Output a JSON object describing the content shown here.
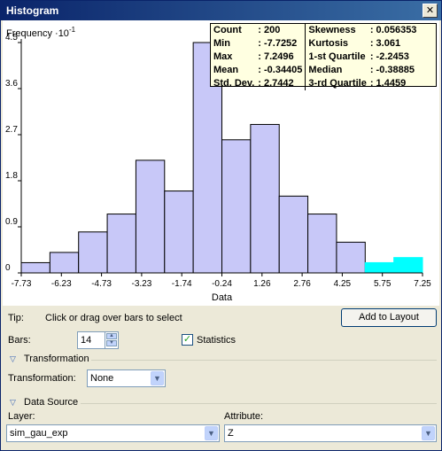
{
  "window": {
    "title": "Histogram"
  },
  "colors": {
    "bar_fill": "#c8c8f8",
    "bar_selected": "#00ffff",
    "bar_stroke": "#000000"
  },
  "chart_data": {
    "type": "bar",
    "title": "",
    "ylabel": "Frequency ·10",
    "ylabel_exponent": "-1",
    "xlabel": "Data",
    "yticks": [
      "0",
      "0.9",
      "1.8",
      "2.7",
      "3.6",
      "4.5"
    ],
    "xticks": [
      "-7.73",
      "-6.23",
      "-4.73",
      "-3.23",
      "-1.74",
      "-0.24",
      "1.26",
      "2.76",
      "4.25",
      "5.75",
      "7.25"
    ],
    "ylim": [
      0,
      4.5
    ],
    "xlim": [
      -7.7252,
      7.2496
    ],
    "bins": 14,
    "values": [
      0.2,
      0.4,
      0.8,
      1.15,
      2.2,
      1.6,
      4.5,
      2.6,
      2.9,
      1.5,
      1.15,
      0.6,
      0.2,
      0.3
    ],
    "selected": [
      false,
      false,
      false,
      false,
      false,
      false,
      false,
      false,
      false,
      false,
      false,
      false,
      true,
      true
    ]
  },
  "statistics": {
    "rows": [
      {
        "label1": "Count",
        "value1": ": 200",
        "label2": "Skewness",
        "value2": ": 0.056353"
      },
      {
        "label1": "Min",
        "value1": ": -7.7252",
        "label2": "Kurtosis",
        "value2": ": 3.061"
      },
      {
        "label1": "Max",
        "value1": ": 7.2496",
        "label2": "1-st Quartile",
        "value2": ": -2.2453"
      },
      {
        "label1": "Mean",
        "value1": ": -0.34405",
        "label2": "Median",
        "value2": ": -0.38885"
      },
      {
        "label1": "Std. Dev.",
        "value1": ": 2.7442",
        "label2": "3-rd Quartile",
        "value2": ": 1.4459"
      }
    ]
  },
  "controls": {
    "tip_label": "Tip:",
    "tip_text": "Click or drag over bars to select",
    "add_to_layout": "Add to Layout",
    "bars_label": "Bars:",
    "bars_value": "14",
    "statistics_label": "Statistics",
    "statistics_checked": true,
    "transformation_section": "Transformation",
    "transformation_label": "Transformation:",
    "transformation_value": "None",
    "data_source_section": "Data Source",
    "layer_label": "Layer:",
    "layer_value": "sim_gau_exp",
    "attribute_label": "Attribute:",
    "attribute_value": "Z"
  }
}
